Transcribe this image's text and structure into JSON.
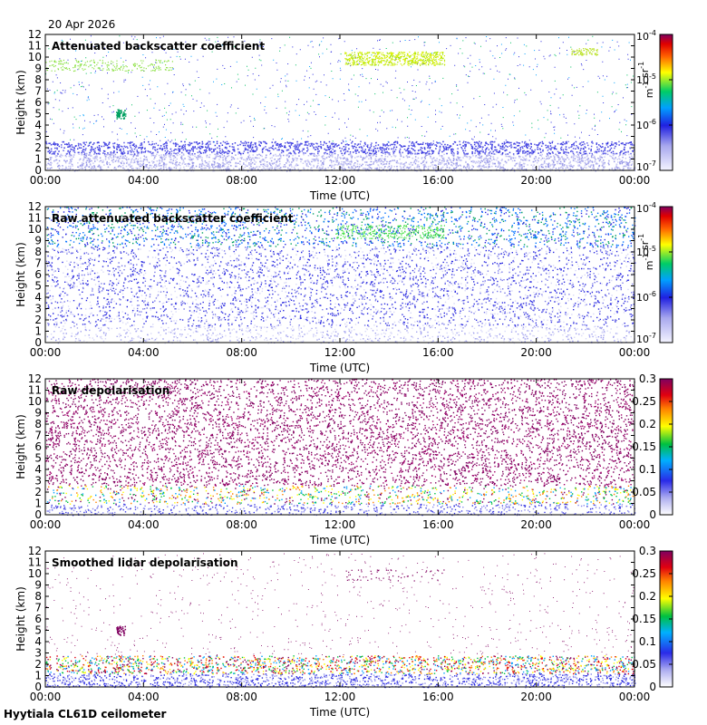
{
  "date": "20 Apr 2026",
  "footer": "Hyytiala CL61D ceilometer",
  "chart_data": [
    {
      "type": "heatmap",
      "title": "Attenuated backscatter coefficient",
      "xlabel": "Time (UTC)",
      "ylabel": "Height (km)",
      "xticks": [
        "00:00",
        "04:00",
        "08:00",
        "12:00",
        "16:00",
        "20:00",
        "00:00"
      ],
      "yticks": [
        "0",
        "1",
        "2",
        "3",
        "4",
        "5",
        "6",
        "7",
        "8",
        "9",
        "10",
        "11",
        "12"
      ],
      "ylim": [
        0,
        12
      ],
      "colorbar": {
        "scale": "log",
        "range": [
          1e-07,
          0.0001
        ],
        "label": "m-1 sr-1",
        "ticks": [
          {
            "base": "10",
            "exp": "-4"
          },
          {
            "base": "10",
            "exp": "-5"
          },
          {
            "base": "10",
            "exp": "-6"
          },
          {
            "base": "10",
            "exp": "-7"
          }
        ],
        "unit_parts": [
          {
            "base": "m",
            "exp": "-1"
          },
          {
            "base": " sr",
            "exp": "-1"
          }
        ]
      },
      "features": {
        "boundary_layer_top_km": 2.4,
        "cloud_layers_km": [
          [
            9.0,
            9.6
          ],
          [
            9.6,
            10.6
          ],
          [
            4.6,
            5.4
          ]
        ]
      }
    },
    {
      "type": "heatmap",
      "title": "Raw attenuated backscatter coefficient",
      "xlabel": "Time (UTC)",
      "ylabel": "Height (km)",
      "xticks": [
        "00:00",
        "04:00",
        "08:00",
        "12:00",
        "16:00",
        "20:00",
        "00:00"
      ],
      "yticks": [
        "0",
        "1",
        "2",
        "3",
        "4",
        "5",
        "6",
        "7",
        "8",
        "9",
        "10",
        "11",
        "12"
      ],
      "ylim": [
        0,
        12
      ],
      "colorbar": {
        "scale": "log",
        "range": [
          1e-07,
          0.0001
        ],
        "label": "m-1 sr-1",
        "ticks": [
          {
            "base": "10",
            "exp": "-4"
          },
          {
            "base": "10",
            "exp": "-5"
          },
          {
            "base": "10",
            "exp": "-6"
          },
          {
            "base": "10",
            "exp": "-7"
          }
        ],
        "unit_parts": [
          {
            "base": "m",
            "exp": "-1"
          },
          {
            "base": " sr",
            "exp": "-1"
          }
        ]
      }
    },
    {
      "type": "heatmap",
      "title": "Raw depolarisation",
      "xlabel": "Time (UTC)",
      "ylabel": "Height (km)",
      "xticks": [
        "00:00",
        "04:00",
        "08:00",
        "12:00",
        "16:00",
        "20:00",
        "00:00"
      ],
      "yticks": [
        "0",
        "1",
        "2",
        "3",
        "4",
        "5",
        "6",
        "7",
        "8",
        "9",
        "10",
        "11",
        "12"
      ],
      "ylim": [
        0,
        12
      ],
      "colorbar": {
        "scale": "linear",
        "range": [
          0,
          0.3
        ],
        "ticks": [
          "0.3",
          "0.25",
          "0.2",
          "0.15",
          "0.1",
          "0.05",
          "0"
        ]
      }
    },
    {
      "type": "heatmap",
      "title": "Smoothed lidar depolarisation",
      "xlabel": "Time (UTC)",
      "ylabel": "Height (km)",
      "xticks": [
        "00:00",
        "04:00",
        "08:00",
        "12:00",
        "16:00",
        "20:00",
        "00:00"
      ],
      "yticks": [
        "0",
        "1",
        "2",
        "3",
        "4",
        "5",
        "6",
        "7",
        "8",
        "9",
        "10",
        "11",
        "12"
      ],
      "ylim": [
        0,
        12
      ],
      "colorbar": {
        "scale": "linear",
        "range": [
          0,
          0.3
        ],
        "ticks": [
          "0.3",
          "0.25",
          "0.2",
          "0.15",
          "0.1",
          "0.05",
          "0"
        ]
      }
    }
  ]
}
